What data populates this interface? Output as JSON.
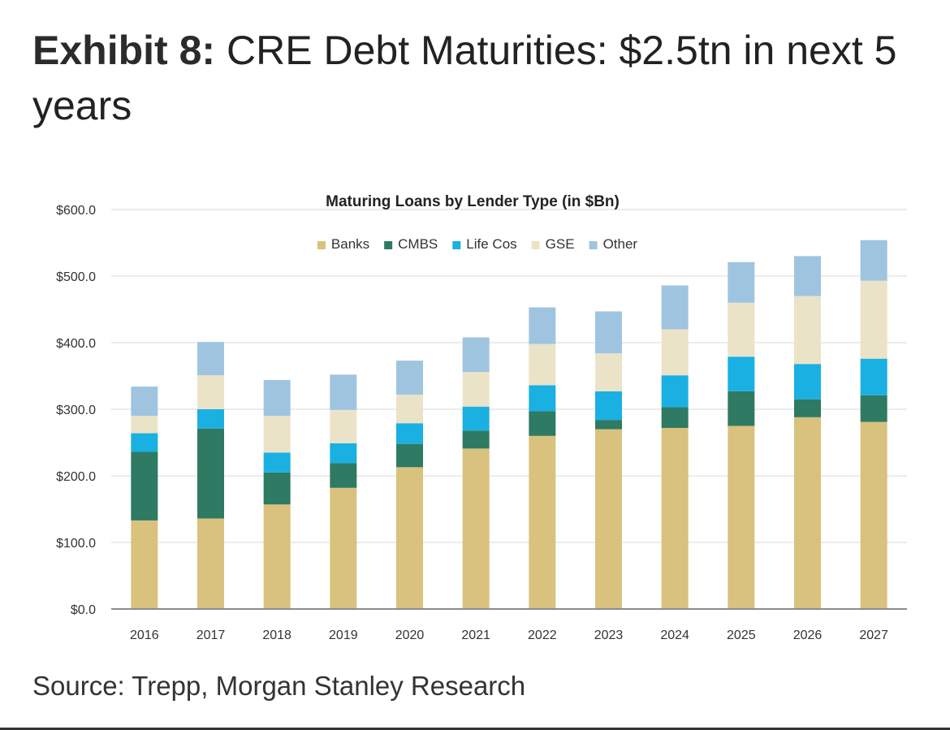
{
  "heading": {
    "label": "Exhibit 8:",
    "text": "CRE Debt Maturities: $2.5tn in next 5 years"
  },
  "source": "Source: Trepp, Morgan Stanley Research",
  "chart_data": {
    "type": "bar",
    "stacked": true,
    "title": "Maturing Loans by Lender Type (in $Bn)",
    "xlabel": "",
    "ylabel": "",
    "ylim": [
      0,
      600
    ],
    "yticks": [
      0,
      100,
      200,
      300,
      400,
      500,
      600
    ],
    "ytick_labels": [
      "$0.0",
      "$100.0",
      "$200.0",
      "$300.0",
      "$400.0",
      "$500.0",
      "$600.0"
    ],
    "grid": true,
    "legend_position": "top-center",
    "categories": [
      "2016",
      "2017",
      "2018",
      "2019",
      "2020",
      "2021",
      "2022",
      "2023",
      "2024",
      "2025",
      "2026",
      "2027"
    ],
    "series": [
      {
        "name": "Banks",
        "color": "#d9c17e",
        "values": [
          133,
          136,
          157,
          182,
          213,
          241,
          260,
          270,
          272,
          275,
          288,
          281
        ]
      },
      {
        "name": "CMBS",
        "color": "#2e7a63",
        "values": [
          103,
          135,
          48,
          37,
          35,
          27,
          37,
          14,
          31,
          52,
          27,
          40
        ]
      },
      {
        "name": "Life Cos",
        "color": "#1ab0e2",
        "values": [
          28,
          29,
          30,
          30,
          31,
          36,
          39,
          43,
          48,
          52,
          53,
          55
        ]
      },
      {
        "name": "GSE",
        "color": "#ebe3c8",
        "values": [
          26,
          51,
          55,
          50,
          43,
          52,
          62,
          57,
          69,
          81,
          102,
          117
        ]
      },
      {
        "name": "Other",
        "color": "#9fc4e0",
        "values": [
          44,
          50,
          54,
          53,
          51,
          52,
          55,
          63,
          66,
          61,
          60,
          61
        ]
      }
    ]
  }
}
